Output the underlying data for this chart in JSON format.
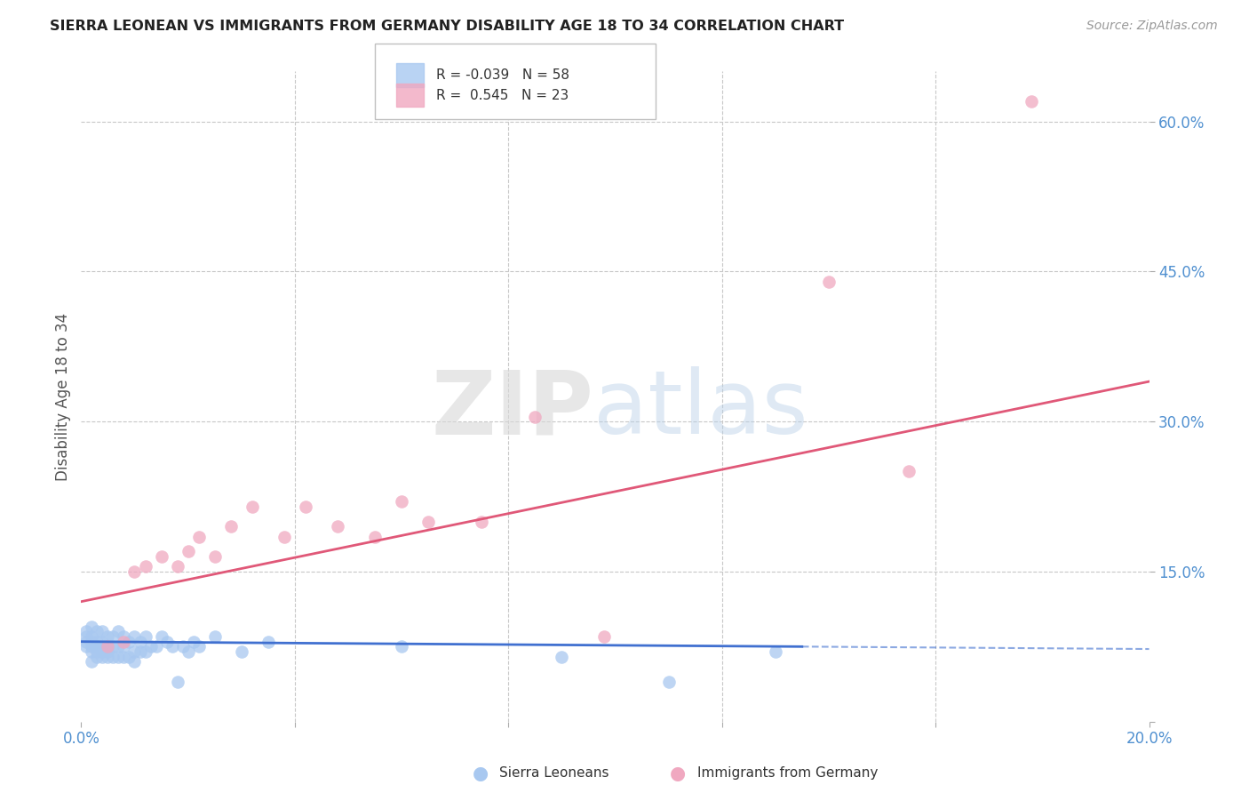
{
  "title": "SIERRA LEONEAN VS IMMIGRANTS FROM GERMANY DISABILITY AGE 18 TO 34 CORRELATION CHART",
  "source": "Source: ZipAtlas.com",
  "ylabel": "Disability Age 18 to 34",
  "x_min": 0.0,
  "x_max": 0.2,
  "y_min": 0.0,
  "y_max": 0.65,
  "background_color": "#ffffff",
  "plot_bg_color": "#ffffff",
  "grid_color": "#c8c8c8",
  "sierra_color": "#a8c8f0",
  "germany_color": "#f0a8c0",
  "sierra_line_color": "#4070d0",
  "germany_line_color": "#e05878",
  "sierra_R": -0.039,
  "sierra_N": 58,
  "germany_R": 0.545,
  "germany_N": 23,
  "legend_label_sierra": "Sierra Leoneans",
  "legend_label_germany": "Immigrants from Germany",
  "sierra_x": [
    0.001,
    0.001,
    0.001,
    0.001,
    0.002,
    0.002,
    0.002,
    0.002,
    0.002,
    0.002,
    0.003,
    0.003,
    0.003,
    0.003,
    0.003,
    0.004,
    0.004,
    0.004,
    0.004,
    0.005,
    0.005,
    0.005,
    0.005,
    0.006,
    0.006,
    0.006,
    0.007,
    0.007,
    0.007,
    0.008,
    0.008,
    0.008,
    0.009,
    0.009,
    0.01,
    0.01,
    0.01,
    0.011,
    0.011,
    0.012,
    0.012,
    0.013,
    0.014,
    0.015,
    0.016,
    0.017,
    0.018,
    0.019,
    0.02,
    0.021,
    0.022,
    0.025,
    0.03,
    0.035,
    0.06,
    0.09,
    0.11,
    0.13
  ],
  "sierra_y": [
    0.075,
    0.08,
    0.085,
    0.09,
    0.06,
    0.07,
    0.075,
    0.08,
    0.085,
    0.095,
    0.065,
    0.07,
    0.075,
    0.08,
    0.09,
    0.065,
    0.07,
    0.08,
    0.09,
    0.065,
    0.07,
    0.075,
    0.085,
    0.065,
    0.075,
    0.085,
    0.065,
    0.075,
    0.09,
    0.065,
    0.075,
    0.085,
    0.065,
    0.08,
    0.06,
    0.07,
    0.085,
    0.07,
    0.08,
    0.07,
    0.085,
    0.075,
    0.075,
    0.085,
    0.08,
    0.075,
    0.04,
    0.075,
    0.07,
    0.08,
    0.075,
    0.085,
    0.07,
    0.08,
    0.075,
    0.065,
    0.04,
    0.07
  ],
  "germany_x": [
    0.005,
    0.008,
    0.01,
    0.012,
    0.015,
    0.018,
    0.02,
    0.022,
    0.025,
    0.028,
    0.032,
    0.038,
    0.042,
    0.048,
    0.055,
    0.06,
    0.065,
    0.075,
    0.085,
    0.098,
    0.14,
    0.155,
    0.178
  ],
  "germany_y": [
    0.075,
    0.08,
    0.15,
    0.155,
    0.165,
    0.155,
    0.17,
    0.185,
    0.165,
    0.195,
    0.215,
    0.185,
    0.215,
    0.195,
    0.185,
    0.22,
    0.2,
    0.2,
    0.305,
    0.085,
    0.44,
    0.25,
    0.62
  ],
  "sl_line_x0": 0.0,
  "sl_line_x1": 0.135,
  "sl_line_y0": 0.08,
  "sl_line_y1": 0.075,
  "de_line_x0": 0.0,
  "de_line_x1": 0.2,
  "de_line_y0": 0.12,
  "de_line_y1": 0.34
}
